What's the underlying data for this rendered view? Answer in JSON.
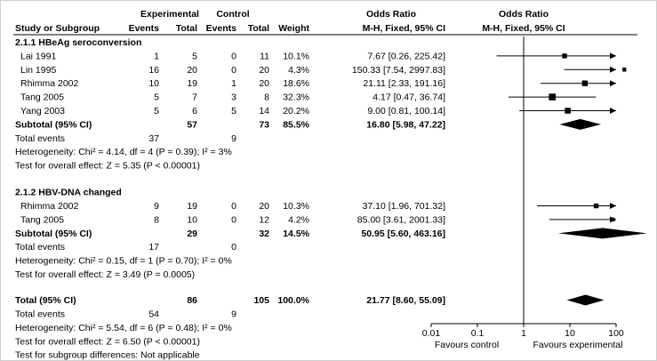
{
  "chart_data": {
    "type": "forest",
    "title": "",
    "header": {
      "experimental": "Experimental",
      "control": "Control",
      "odds_ratio_mid": "Odds Ratio",
      "odds_ratio_right": "Odds Ratio",
      "study": "Study or Subgroup",
      "events": "Events",
      "total": "Total",
      "weight": "Weight",
      "method_mid": "M-H, Fixed, 95% CI",
      "method_right": "M-H, Fixed, 95% CI"
    },
    "groups": [
      {
        "label": "2.1.1 HBeAg seroconversion",
        "studies": [
          {
            "study": "Lai 1991",
            "e_events": "1",
            "e_total": "5",
            "c_events": "0",
            "c_total": "11",
            "weight": "10.1%",
            "ci_text": "7.67 [0.26, 225.42]",
            "or": 7.67,
            "lower": 0.26,
            "upper": 225.42
          },
          {
            "study": "Lin 1995",
            "e_events": "16",
            "e_total": "20",
            "c_events": "0",
            "c_total": "20",
            "weight": "4.3%",
            "ci_text": "150.33 [7.54, 2997.83]",
            "or": 150.33,
            "lower": 7.54,
            "upper": 2997.83
          },
          {
            "study": "Rhimma 2002",
            "e_events": "10",
            "e_total": "19",
            "c_events": "1",
            "c_total": "20",
            "weight": "18.6%",
            "ci_text": "21.11 [2.33, 191.16]",
            "or": 21.11,
            "lower": 2.33,
            "upper": 191.16
          },
          {
            "study": "Tang 2005",
            "e_events": "5",
            "e_total": "7",
            "c_events": "3",
            "c_total": "8",
            "weight": "32.3%",
            "ci_text": "4.17 [0.47, 36.74]",
            "or": 4.17,
            "lower": 0.47,
            "upper": 36.74
          },
          {
            "study": "Yang 2003",
            "e_events": "5",
            "e_total": "6",
            "c_events": "5",
            "c_total": "14",
            "weight": "20.2%",
            "ci_text": "9.00 [0.81, 100.14]",
            "or": 9.0,
            "lower": 0.81,
            "upper": 100.14
          }
        ],
        "subtotal": {
          "label": "Subtotal (95% CI)",
          "e_total": "57",
          "c_total": "73",
          "weight": "85.5%",
          "ci_text": "16.80 [5.98, 47.22]",
          "or": 16.8,
          "lower": 5.98,
          "upper": 47.22
        },
        "total_events": {
          "label": "Total events",
          "e": "37",
          "c": "9"
        },
        "heterogeneity": "Heterogeneity: Chi² = 4.14, df = 4 (P = 0.39); I² = 3%",
        "overall_effect": "Test for overall effect: Z = 5.35 (P < 0.00001)"
      },
      {
        "label": "2.1.2 HBV-DNA changed",
        "studies": [
          {
            "study": "Rhimma 2002",
            "e_events": "9",
            "e_total": "19",
            "c_events": "0",
            "c_total": "20",
            "weight": "10.3%",
            "ci_text": "37.10 [1.96, 701.32]",
            "or": 37.1,
            "lower": 1.96,
            "upper": 701.32
          },
          {
            "study": "Tang 2005",
            "e_events": "8",
            "e_total": "10",
            "c_events": "0",
            "c_total": "12",
            "weight": "4.2%",
            "ci_text": "85.00 [3.61, 2001.33]",
            "or": 85.0,
            "lower": 3.61,
            "upper": 2001.33
          }
        ],
        "subtotal": {
          "label": "Subtotal (95% CI)",
          "e_total": "29",
          "c_total": "32",
          "weight": "14.5%",
          "ci_text": "50.95 [5.60, 463.16]",
          "or": 50.95,
          "lower": 5.6,
          "upper": 463.16
        },
        "total_events": {
          "label": "Total events",
          "e": "17",
          "c": "0"
        },
        "heterogeneity": "Heterogeneity: Chi² = 0.15, df = 1 (P = 0.70); I² = 0%",
        "overall_effect": "Test for overall effect: Z = 3.49 (P = 0.0005)"
      }
    ],
    "total": {
      "label": "Total (95% CI)",
      "e_total": "86",
      "c_total": "105",
      "weight": "100.0%",
      "ci_text": "21.77 [8.60, 55.09]",
      "or": 21.77,
      "lower": 8.6,
      "upper": 55.09
    },
    "total_events": {
      "label": "Total events",
      "e": "54",
      "c": "9"
    },
    "heterogeneity": "Heterogeneity: Chi² = 5.54, df = 6 (P = 0.48); I² = 0%",
    "overall_effect": "Test for overall effect: Z = 6.50 (P < 0.00001)",
    "subgroup_differences": "Test for subgroup differences: Not applicable",
    "axis": {
      "scale": "log",
      "ticks": [
        0.01,
        0.1,
        1,
        10,
        100
      ],
      "tick_labels": [
        "0.01",
        "0.1",
        "1",
        "10",
        "100"
      ],
      "xlim": [
        0.01,
        100
      ],
      "favours_left": "Favours control",
      "favours_right": "Favours experimental"
    },
    "colors": {
      "ink": "#000000"
    }
  }
}
